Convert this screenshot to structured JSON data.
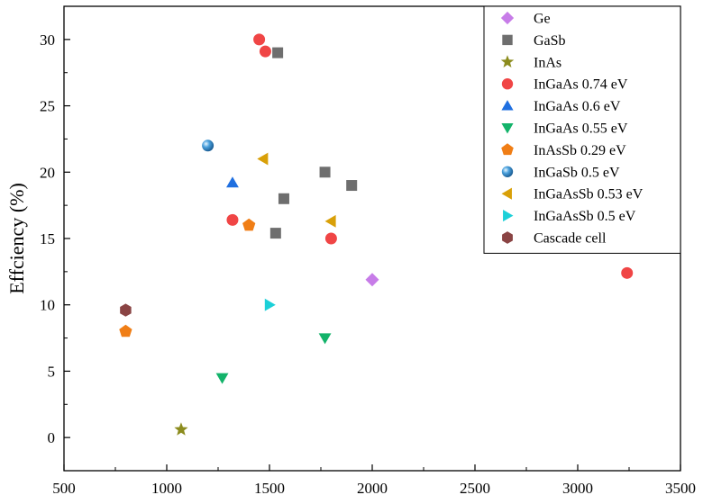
{
  "chart_data": {
    "type": "scatter",
    "title": "",
    "xlabel": "",
    "ylabel": "Effciency (%)",
    "xlim": [
      500,
      3500
    ],
    "ylim": [
      -2.5,
      32.5
    ],
    "xticks": [
      500,
      1000,
      1500,
      2000,
      2500,
      3000,
      3500
    ],
    "yticks": [
      0,
      5,
      10,
      15,
      20,
      25,
      30
    ],
    "grid": false,
    "legend_position": "top-right",
    "series": [
      {
        "name": "Ge",
        "marker": "diamond",
        "color": "#c77ce8",
        "points": [
          [
            2000,
            11.9
          ]
        ]
      },
      {
        "name": "GaSb",
        "marker": "square",
        "color": "#6e6e6e",
        "points": [
          [
            1540,
            29.0
          ],
          [
            1770,
            20.0
          ],
          [
            1900,
            19.0
          ],
          [
            1570,
            18.0
          ],
          [
            1530,
            15.4
          ]
        ]
      },
      {
        "name": "InAs",
        "marker": "star",
        "color": "#8c8c1e",
        "points": [
          [
            1070,
            0.6
          ]
        ]
      },
      {
        "name": "InGaAs 0.74 eV",
        "marker": "circle",
        "color": "#f04545",
        "points": [
          [
            1450,
            30.0
          ],
          [
            1480,
            29.1
          ],
          [
            1320,
            16.4
          ],
          [
            1800,
            15.0
          ],
          [
            3240,
            12.4
          ]
        ]
      },
      {
        "name": "InGaAs 0.6 eV",
        "marker": "triangle-up",
        "color": "#1f6fe0",
        "points": [
          [
            1320,
            19.2
          ]
        ]
      },
      {
        "name": "InGaAs 0.55 eV",
        "marker": "triangle-down",
        "color": "#13b36a",
        "points": [
          [
            1270,
            4.5
          ],
          [
            1770,
            7.5
          ]
        ]
      },
      {
        "name": "InAsSb 0.29 eV",
        "marker": "pentagon",
        "color": "#f07e16",
        "points": [
          [
            800,
            8.0
          ],
          [
            1400,
            16.0
          ]
        ]
      },
      {
        "name": "InGaSb 0.5 eV",
        "marker": "sphere",
        "color": "#4aa0dc",
        "points": [
          [
            1200,
            22.0
          ]
        ]
      },
      {
        "name": "InGaAsSb 0.53 eV",
        "marker": "triangle-left",
        "color": "#d9a008",
        "points": [
          [
            1470,
            21.0
          ],
          [
            1800,
            16.3
          ]
        ]
      },
      {
        "name": "InGaAsSb 0.5 eV",
        "marker": "triangle-right",
        "color": "#1cd0d8",
        "points": [
          [
            1500,
            10.0
          ]
        ]
      },
      {
        "name": "Cascade cell",
        "marker": "hexagon",
        "color": "#8a4444",
        "points": [
          [
            800,
            9.6
          ]
        ]
      }
    ]
  }
}
